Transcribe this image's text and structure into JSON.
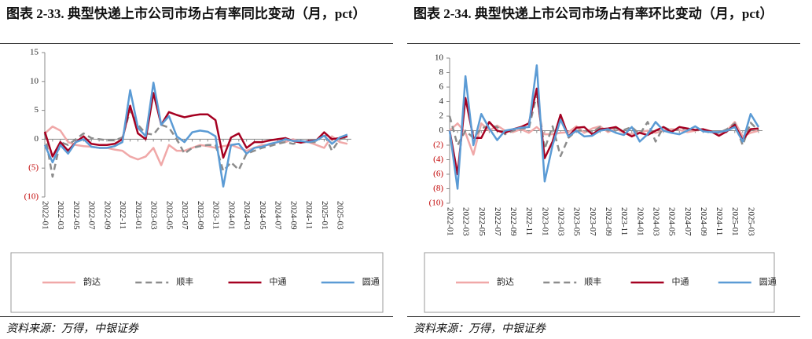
{
  "chart_data": [
    {
      "type": "line",
      "title": "图表 2-33. 典型快递上市公司市场占有率同比变动（月，pct）",
      "source": "资料来源：万得，中银证券",
      "categories": [
        "2022-01",
        null,
        "2022-03",
        null,
        "2022-05",
        null,
        "2022-07",
        null,
        "2022-09",
        null,
        "2022-11",
        null,
        "2023-01",
        null,
        "2023-03",
        null,
        "2023-05",
        null,
        "2023-07",
        null,
        "2023-09",
        null,
        "2023-11",
        null,
        "2024-01",
        null,
        "2024-03",
        null,
        "2024-05",
        null,
        "2024-07",
        null,
        "2024-09",
        null,
        "2024-11",
        null,
        "2025-01",
        null,
        "2025-03",
        null
      ],
      "ylim": [
        -10,
        15
      ],
      "yticks": [
        {
          "value": -10,
          "label": "(10)"
        },
        {
          "value": -5,
          "label": "(5)"
        },
        0,
        5,
        10,
        15
      ],
      "grid": false,
      "legend": "bottom",
      "series": [
        {
          "name": "韵达",
          "color": "#f0a8a8",
          "line_style": "solid",
          "values": [
            1,
            2.2,
            1.5,
            -0.5,
            -1,
            -1.2,
            -1.3,
            -1.5,
            -1.5,
            -1.8,
            -2,
            -3,
            -3.5,
            -3,
            -1.5,
            -4.5,
            -1,
            -2,
            -2,
            -1.5,
            -1,
            -1.2,
            -1.5,
            -1.2,
            -1,
            -1.5,
            -2,
            -1.5,
            -1,
            -1,
            -0.5,
            -0.5,
            0,
            -0.5,
            -0.5,
            -1,
            -1.5,
            0.5,
            -0.5,
            -0.8
          ]
        },
        {
          "name": "顺丰",
          "color": "#8c8c8c",
          "line_style": "dashed",
          "values": [
            1,
            -6.5,
            -0.5,
            -1,
            0,
            1,
            0.2,
            0,
            -0.2,
            -0.2,
            0.3,
            5,
            2.5,
            1,
            0.8,
            2.5,
            2,
            0,
            -2.5,
            -1.5,
            -1.2,
            -1,
            -1,
            -5.5,
            -4,
            -5.3,
            -2.5,
            -2,
            -1.5,
            -1.2,
            -0.8,
            -0.5,
            -0.8,
            -0.5,
            -0.5,
            -0.5,
            1,
            -2,
            0,
            0.3
          ]
        },
        {
          "name": "中通",
          "color": "#a50021",
          "line_style": "solid",
          "values": [
            1.3,
            -3,
            -0.5,
            -2,
            -0.5,
            0.5,
            -0.8,
            -1,
            -1,
            -0.8,
            0,
            5.8,
            1,
            0,
            8,
            2.5,
            4.7,
            4.2,
            3.8,
            4.1,
            4.3,
            4.3,
            3.3,
            -3.2,
            0.3,
            1,
            -1.5,
            -0.5,
            -0.5,
            -0.2,
            0,
            0.2,
            -0.3,
            -0.6,
            -0.3,
            -0.2,
            1.2,
            0,
            0.2,
            0.5
          ]
        },
        {
          "name": "圆通",
          "color": "#5b9bd5",
          "line_style": "solid",
          "values": [
            -1,
            -4,
            -1,
            -2.5,
            -0.5,
            0,
            -1.3,
            -1.5,
            -1.5,
            -1.2,
            -0.5,
            8.5,
            2,
            0.5,
            9.8,
            2.5,
            4,
            0.5,
            -0.5,
            1.2,
            1.5,
            1.3,
            0.5,
            -8.2,
            -1,
            -0.8,
            -2.5,
            -1.5,
            -1.3,
            -0.8,
            -0.5,
            0,
            -0.3,
            -0.3,
            -0.5,
            -0.2,
            0.6,
            -0.8,
            0.3,
            0.8
          ]
        }
      ]
    },
    {
      "type": "line",
      "title": "图表 2-34. 典型快递上市公司市场占有率环比变动（月，pct）",
      "source": "资料来源：万得，中银证券",
      "categories": [
        "2022-01",
        null,
        "2022-03",
        null,
        "2022-05",
        null,
        "2022-07",
        null,
        "2022-09",
        null,
        "2022-11",
        null,
        "2023-01",
        null,
        "2023-03",
        null,
        "2023-05",
        null,
        "2023-07",
        null,
        "2023-09",
        null,
        "2023-11",
        null,
        "2024-01",
        null,
        "2024-03",
        null,
        "2024-05",
        null,
        "2024-07",
        null,
        "2024-09",
        null,
        "2024-11",
        null,
        "2025-01",
        null,
        "2025-03",
        null
      ],
      "ylim": [
        -10,
        10
      ],
      "yticks": [
        {
          "value": -10,
          "label": "(10)"
        },
        {
          "value": -8,
          "label": "(8)"
        },
        {
          "value": -6,
          "label": "(6)"
        },
        {
          "value": -4,
          "label": "(4)"
        },
        {
          "value": -2,
          "label": "(2)"
        },
        0,
        2,
        4,
        6,
        8,
        10
      ],
      "grid": false,
      "legend": "bottom",
      "series": [
        {
          "name": "韵达",
          "color": "#f0a8a8",
          "line_style": "solid",
          "values": [
            0,
            1,
            -0.3,
            -3.3,
            1,
            0,
            0.7,
            0,
            -0.2,
            0.2,
            -0.3,
            0.5,
            -0.5,
            -0.5,
            -0.3,
            -0.2,
            0.6,
            -0.3,
            0.3,
            0.6,
            -0.2,
            0.3,
            -0.3,
            -0.5,
            -0.2,
            0,
            -0.3,
            0,
            0.2,
            0.1,
            -0.2,
            0,
            0.2,
            -0.2,
            -0.3,
            0,
            1.2,
            -0.8,
            -0.3,
            0
          ]
        },
        {
          "name": "顺丰",
          "color": "#8c8c8c",
          "line_style": "dashed",
          "values": [
            2,
            -2,
            0,
            -1,
            0.3,
            0.7,
            0.5,
            -0.5,
            0,
            0.3,
            0.3,
            5,
            -2.5,
            0.6,
            -3.5,
            -1,
            0,
            0,
            -0.2,
            0.5,
            0,
            0.3,
            0.1,
            0.5,
            -0.5,
            1.2,
            -1.5,
            0.5,
            0,
            0.2,
            0.3,
            0.1,
            0,
            -0.3,
            -0.3,
            0.2,
            1,
            -2,
            1.1,
            0
          ]
        },
        {
          "name": "中通",
          "color": "#a50021",
          "line_style": "solid",
          "values": [
            0,
            -6,
            4.5,
            -1,
            -1,
            1.2,
            0,
            -0.3,
            0.2,
            0.5,
            1,
            5.8,
            -3.8,
            -1.5,
            2.2,
            -0.8,
            0.4,
            0.5,
            -0.5,
            0.2,
            0.3,
            0.5,
            -0.2,
            -0.8,
            -0.3,
            -0.6,
            0,
            0.5,
            -0.2,
            0.5,
            0.3,
            0.1,
            0.2,
            -0.1,
            -0.7,
            -0.1,
            0.8,
            -1.3,
            0.2,
            0.3
          ]
        },
        {
          "name": "圆通",
          "color": "#5b9bd5",
          "line_style": "solid",
          "values": [
            0,
            -8,
            7.5,
            -2,
            2.3,
            0.3,
            -1.3,
            0,
            0.2,
            0.4,
            0.5,
            9,
            -7,
            -2,
            1.5,
            -0.8,
            0,
            -0.8,
            -0.7,
            0,
            0.2,
            -0.3,
            -0.6,
            0.5,
            -1.5,
            -0.5,
            1.2,
            0,
            -0.3,
            -0.5,
            0,
            0.6,
            -0.1,
            -0.2,
            -0.2,
            0,
            0.5,
            -1.5,
            2.3,
            0.5
          ]
        }
      ]
    }
  ]
}
